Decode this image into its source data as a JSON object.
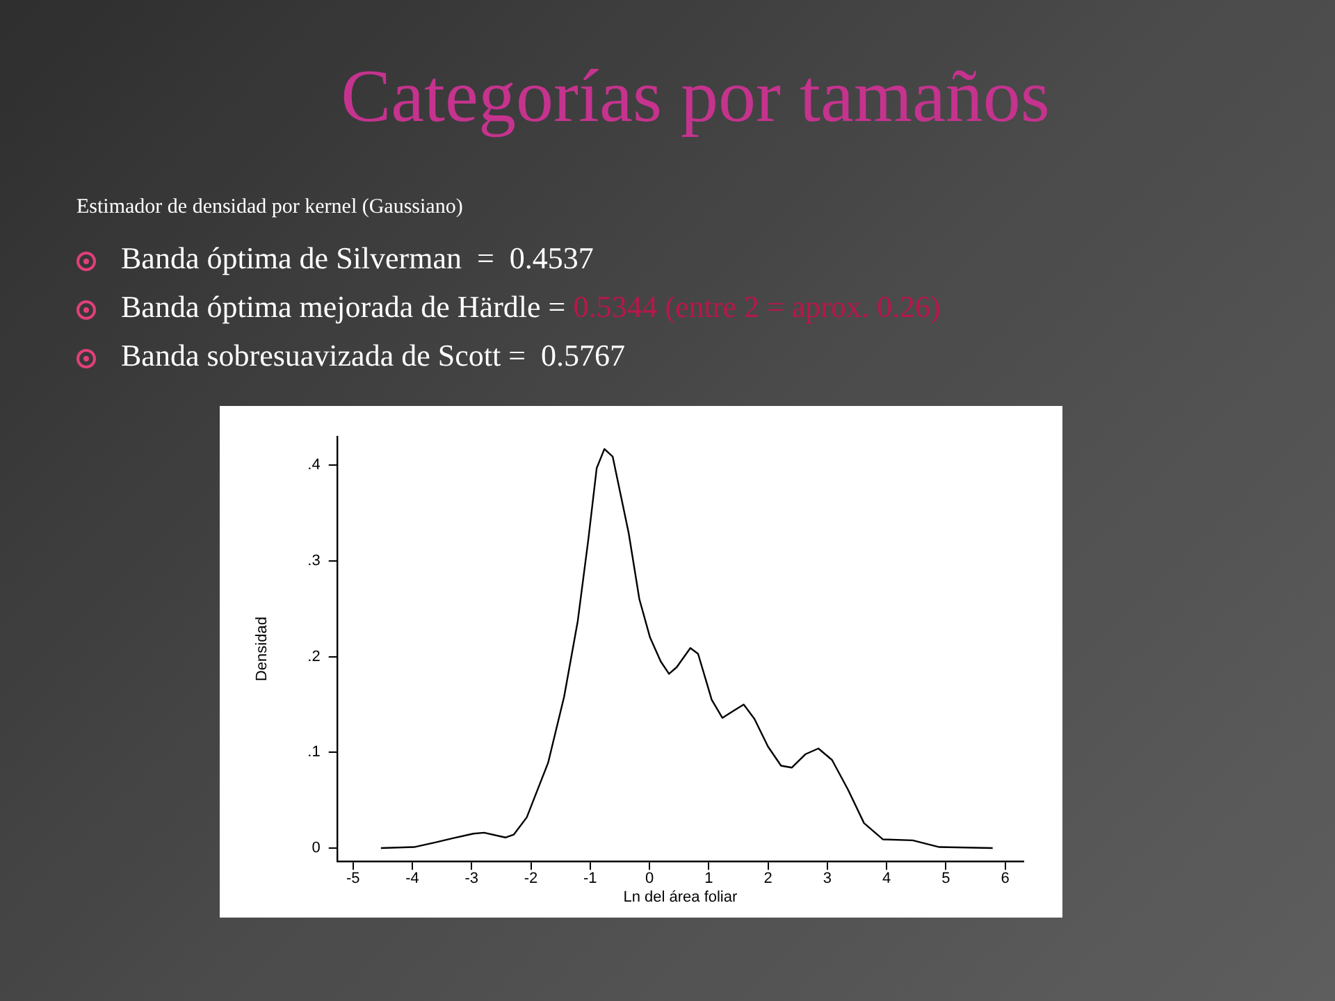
{
  "chart_data": {
    "type": "line",
    "title": "Categorías por tamaños",
    "subtitle": "Estimador de densidad por kernel (Gaussiano)",
    "annotations": [
      "Banda óptima de Silverman  =  0.4537",
      "Banda óptima mejorada de Härdle =",
      "0.5344 (entre 2 = aprox. 0.26)",
      "Banda sobresuavizada de Scott =  0.5767"
    ],
    "xlabel": "Ln del área foliar",
    "ylabel": "Densidad",
    "x": [
      -4.53,
      -3.97,
      -3.6,
      -3.33,
      -2.97,
      -2.79,
      -2.43,
      -2.29,
      -2.07,
      -1.71,
      -1.44,
      -1.21,
      -1.03,
      -0.89,
      -0.76,
      -0.62,
      -0.35,
      -0.17,
      0.01,
      0.19,
      0.33,
      0.46,
      0.69,
      0.82,
      1.05,
      1.23,
      1.41,
      1.59,
      1.77,
      2.0,
      2.22,
      2.4,
      2.63,
      2.85,
      3.08,
      3.35,
      3.62,
      3.94,
      4.44,
      4.89,
      5.79
    ],
    "series": [
      {
        "color": "#000000",
        "values": [
          0,
          0.001,
          0.006,
          0.01,
          0.015,
          0.016,
          0.011,
          0.014,
          0.032,
          0.089,
          0.158,
          0.237,
          0.323,
          0.397,
          0.417,
          0.409,
          0.329,
          0.26,
          0.22,
          0.195,
          0.182,
          0.189,
          0.209,
          0.203,
          0.155,
          0.136,
          0.143,
          0.15,
          0.135,
          0.106,
          0.086,
          0.084,
          0.098,
          0.104,
          0.092,
          0.061,
          0.026,
          0.009,
          0.008,
          0.001,
          0
        ]
      }
    ],
    "xlim": [
      -5.27,
      6.31
    ],
    "xticks": [
      -5,
      -4,
      -3,
      -2,
      -1,
      0,
      1,
      2,
      3,
      4,
      5,
      6
    ],
    "ylim": [
      -0.014,
      0.43
    ],
    "yticks": [
      0,
      {
        "value": 0.1,
        "label": ".1"
      },
      {
        "value": 0.2,
        "label": ".2"
      },
      {
        "value": 0.3,
        "label": ".3"
      },
      {
        "value": 0.4,
        "label": ".4"
      }
    ],
    "marker": "none",
    "line_style": "solid"
  }
}
